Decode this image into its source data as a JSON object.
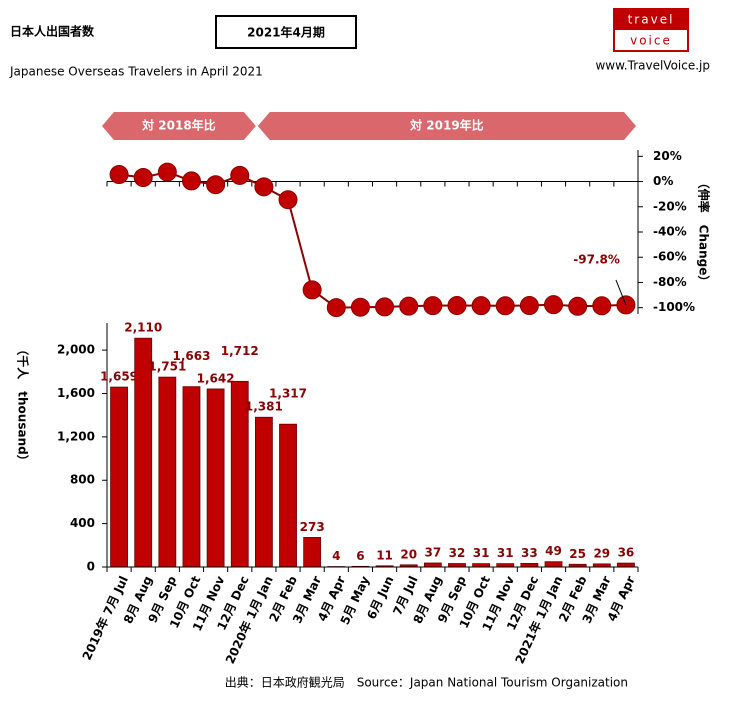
{
  "header": {
    "title": "日本人出国者数",
    "badge": "2021年4月期",
    "subtitle": "Japanese Overseas Travelers in April 2021",
    "logo_top": "travel",
    "logo_bottom": "voice",
    "site": "www.TravelVoice.jp"
  },
  "chart_data": [
    {
      "type": "line",
      "y_label": "（伸率　Change）",
      "annotations": [
        "対 2018年比",
        "対 2019年比"
      ],
      "color": "#c00000",
      "values": [
        5.6,
        3.2,
        7.5,
        0.5,
        -2.5,
        4.9,
        -4.2,
        -14.4,
        -85.9,
        -99.9,
        -99.6,
        -99.4,
        -98.8,
        -98.4,
        -98.3,
        -98.4,
        -98.5,
        -98.3,
        -97.6,
        -98.9,
        -98.5,
        -97.8
      ],
      "value_labels": [
        null,
        null,
        null,
        null,
        null,
        null,
        null,
        null,
        null,
        null,
        null,
        null,
        null,
        null,
        null,
        null,
        null,
        null,
        null,
        null,
        null,
        "-97.8%"
      ],
      "ylim": [
        -105,
        25
      ],
      "yticks": [
        {
          "value": 20,
          "label": "20%"
        },
        {
          "value": 0,
          "label": "0%"
        },
        {
          "value": -20,
          "label": "-20%"
        },
        {
          "value": -40,
          "label": "-40%"
        },
        {
          "value": -60,
          "label": "-60%"
        },
        {
          "value": -80,
          "label": "-80%"
        },
        {
          "value": -100,
          "label": "-100%"
        }
      ]
    },
    {
      "type": "bar",
      "y_label": "（千人　thousand）",
      "color": "#c00000",
      "categories": [
        "2019年 7月 Jul",
        "8月 Aug",
        "9月 Sep",
        "10月 Oct",
        "11月 Nov",
        "12月 Dec",
        "2020年 1月 Jan",
        "2月 Feb",
        "3月 Mar",
        "4月 Apr",
        "5月 May",
        "6月 Jun",
        "7月 Jul",
        "8月 Aug",
        "9月 Sep",
        "10月 Oct",
        "11月 Nov",
        "12月 Dec",
        "2021年 1月 Jan",
        "2月 Feb",
        "3月 Mar",
        "4月 Apr"
      ],
      "values": [
        1659,
        2110,
        1751,
        1663,
        1642,
        1712,
        1381,
        1317,
        273,
        4,
        6,
        11,
        20,
        37,
        32,
        31,
        31,
        33,
        49,
        25,
        29,
        36
      ],
      "value_labels": [
        "1,659",
        "2,110",
        "1,751",
        "1,663",
        "1,642",
        "1,712",
        "1,381",
        "1,317",
        "273",
        "4",
        "6",
        "11",
        "20",
        "37",
        "32",
        "31",
        "31",
        "33",
        "49",
        "25",
        "29",
        "36"
      ],
      "ylim": [
        0,
        2250
      ],
      "yticks": [
        0,
        400,
        800,
        {
          "value": 1200,
          "label": "1,200"
        },
        {
          "value": 1600,
          "label": "1,600"
        },
        {
          "value": 2000,
          "label": "2,000"
        }
      ]
    }
  ],
  "source": "出典：日本政府観光局　Source：Japan National Tourism Organization"
}
